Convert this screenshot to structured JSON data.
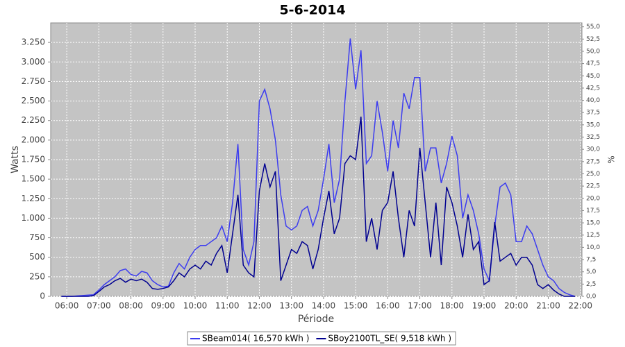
{
  "chart_data": {
    "type": "line",
    "title": "5-6-2014",
    "xlabel": "Période",
    "ylabel": "Watts",
    "y2label": "%",
    "x": [
      5.833,
      6,
      6.167,
      6.333,
      6.5,
      6.667,
      6.833,
      7,
      7.167,
      7.333,
      7.5,
      7.667,
      7.833,
      8,
      8.167,
      8.333,
      8.5,
      8.667,
      8.833,
      9,
      9.167,
      9.333,
      9.5,
      9.667,
      9.833,
      10,
      10.167,
      10.333,
      10.5,
      10.667,
      10.833,
      11,
      11.167,
      11.333,
      11.5,
      11.667,
      11.833,
      12,
      12.167,
      12.333,
      12.5,
      12.667,
      12.833,
      13,
      13.167,
      13.333,
      13.5,
      13.667,
      13.833,
      14,
      14.167,
      14.333,
      14.5,
      14.667,
      14.833,
      15,
      15.167,
      15.333,
      15.5,
      15.667,
      15.833,
      16,
      16.167,
      16.333,
      16.5,
      16.667,
      16.833,
      17,
      17.167,
      17.333,
      17.5,
      17.667,
      17.833,
      18,
      18.167,
      18.333,
      18.5,
      18.667,
      18.833,
      19,
      19.167,
      19.333,
      19.5,
      19.667,
      19.833,
      20,
      20.167,
      20.333,
      20.5,
      20.667,
      20.833,
      21,
      21.167,
      21.333,
      21.5,
      21.667,
      21.833
    ],
    "series": [
      {
        "name": "SBeam014( 16,570 kWh )",
        "color": "#3c3cf0",
        "values": [
          0,
          0,
          0,
          5,
          10,
          15,
          20,
          80,
          150,
          200,
          250,
          330,
          350,
          280,
          260,
          320,
          300,
          200,
          150,
          120,
          130,
          300,
          420,
          350,
          500,
          600,
          650,
          650,
          700,
          750,
          900,
          700,
          1200,
          1950,
          600,
          400,
          700,
          2500,
          2650,
          2400,
          2000,
          1300,
          900,
          850,
          900,
          1100,
          1150,
          900,
          1100,
          1500,
          1950,
          1200,
          1500,
          2500,
          3300,
          2650,
          3150,
          1700,
          1800,
          2500,
          2100,
          1600,
          2250,
          1900,
          2600,
          2400,
          2800,
          2800,
          1600,
          1900,
          1900,
          1450,
          1700,
          2050,
          1800,
          1000,
          1300,
          1100,
          800,
          350,
          200,
          900,
          1400,
          1450,
          1300,
          700,
          700,
          900,
          800,
          600,
          400,
          250,
          200,
          100,
          50,
          20,
          0
        ]
      },
      {
        "name": "SBoy2100TL_SE( 9,518 kWh )",
        "color": "#000090",
        "values": [
          0,
          0,
          0,
          0,
          0,
          0,
          10,
          60,
          120,
          150,
          200,
          230,
          180,
          220,
          200,
          220,
          180,
          100,
          90,
          100,
          120,
          200,
          300,
          250,
          350,
          400,
          350,
          450,
          400,
          550,
          650,
          300,
          800,
          1300,
          400,
          300,
          250,
          1350,
          1700,
          1400,
          1600,
          200,
          400,
          600,
          550,
          700,
          650,
          350,
          600,
          1000,
          1350,
          800,
          1000,
          1700,
          1800,
          1750,
          2300,
          700,
          1000,
          600,
          1100,
          1200,
          1600,
          1000,
          500,
          1100,
          900,
          1900,
          1200,
          500,
          1200,
          400,
          1400,
          1200,
          900,
          500,
          1050,
          600,
          700,
          150,
          200,
          950,
          450,
          500,
          550,
          400,
          500,
          500,
          400,
          150,
          100,
          150,
          80,
          30,
          0,
          0,
          0
        ]
      }
    ],
    "xlim": [
      5.5,
      22.05
    ],
    "xticks": [
      {
        "value": 6,
        "label": "06:00"
      },
      {
        "value": 7,
        "label": "07:00"
      },
      {
        "value": 8,
        "label": "08:00"
      },
      {
        "value": 9,
        "label": "09:00"
      },
      {
        "value": 10,
        "label": "10:00"
      },
      {
        "value": 11,
        "label": "11:00"
      },
      {
        "value": 12,
        "label": "12:00"
      },
      {
        "value": 13,
        "label": "13:00"
      },
      {
        "value": 14,
        "label": "14:00"
      },
      {
        "value": 15,
        "label": "15:00"
      },
      {
        "value": 16,
        "label": "16:00"
      },
      {
        "value": 17,
        "label": "17:00"
      },
      {
        "value": 18,
        "label": "18:00"
      },
      {
        "value": 19,
        "label": "19:00"
      },
      {
        "value": 20,
        "label": "20:00"
      },
      {
        "value": 21,
        "label": "21:00"
      },
      {
        "value": 22,
        "label": "22:00"
      }
    ],
    "ylim": [
      0,
      3500
    ],
    "yticks": [
      0,
      250,
      500,
      750,
      {
        "value": 1000,
        "label": "1.000"
      },
      {
        "value": 1250,
        "label": "1.250"
      },
      {
        "value": 1500,
        "label": "1.500"
      },
      {
        "value": 1750,
        "label": "1.750"
      },
      {
        "value": 2000,
        "label": "2.000"
      },
      {
        "value": 2250,
        "label": "2.250"
      },
      {
        "value": 2500,
        "label": "2.500"
      },
      {
        "value": 2750,
        "label": "2.750"
      },
      {
        "value": 3000,
        "label": "3.000"
      },
      {
        "value": 3250,
        "label": "3.250"
      }
    ],
    "y2lim": [
      0,
      55.8
    ],
    "y2ticks": [
      {
        "value": 0,
        "label": "0,0"
      },
      {
        "value": 2.5,
        "label": "2,5"
      },
      {
        "value": 5,
        "label": "5,0"
      },
      {
        "value": 7.5,
        "label": "7,5"
      },
      {
        "value": 10,
        "label": "10,0"
      },
      {
        "value": 12.5,
        "label": "12,5"
      },
      {
        "value": 15,
        "label": "15,0"
      },
      {
        "value": 17.5,
        "label": "17,5"
      },
      {
        "value": 20,
        "label": "20,0"
      },
      {
        "value": 22.5,
        "label": "22,5"
      },
      {
        "value": 25,
        "label": "25,0"
      },
      {
        "value": 27.5,
        "label": "27,5"
      },
      {
        "value": 30,
        "label": "30,0"
      },
      {
        "value": 32.5,
        "label": "32,5"
      },
      {
        "value": 35,
        "label": "35,0"
      },
      {
        "value": 37.5,
        "label": "37,5"
      },
      {
        "value": 40,
        "label": "40,0"
      },
      {
        "value": 42.5,
        "label": "42,5"
      },
      {
        "value": 45,
        "label": "45,0"
      },
      {
        "value": 47.5,
        "label": "47,5"
      },
      {
        "value": 50,
        "label": "50,0"
      },
      {
        "value": 52.5,
        "label": "52,5"
      },
      {
        "value": 55,
        "label": "55,0"
      }
    ],
    "grid": true,
    "legend": "bottom",
    "plot_background": "#c4c4c4"
  }
}
